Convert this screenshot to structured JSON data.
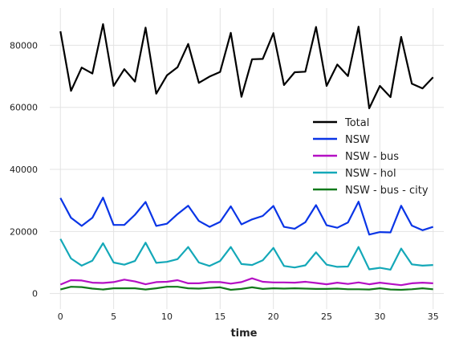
{
  "chart_data": {
    "type": "line",
    "title": "",
    "xlabel": "time",
    "ylabel": "",
    "xlim": [
      -1,
      36
    ],
    "ylim": [
      -5000,
      92000
    ],
    "x_ticks": [
      0,
      5,
      10,
      15,
      20,
      25,
      30,
      35
    ],
    "y_ticks": [
      0,
      20000,
      40000,
      60000,
      80000
    ],
    "grid": true,
    "legend_position": "center-right",
    "x": [
      0,
      1,
      2,
      3,
      4,
      5,
      6,
      7,
      8,
      9,
      10,
      11,
      12,
      13,
      14,
      15,
      16,
      17,
      18,
      19,
      20,
      21,
      22,
      23,
      24,
      25,
      26,
      27,
      28,
      29,
      30,
      31,
      32,
      33,
      34,
      35
    ],
    "series": [
      {
        "name": "Total",
        "color": "#000000",
        "values": [
          84500,
          65300,
          72800,
          70900,
          86800,
          66900,
          72300,
          68300,
          85700,
          64400,
          70300,
          72900,
          80400,
          67900,
          69900,
          71400,
          84000,
          63400,
          75500,
          75600,
          83900,
          67200,
          71300,
          71500,
          85900,
          66900,
          73800,
          70100,
          86000,
          59700,
          66900,
          63300,
          82700,
          67600,
          66100,
          69700
        ]
      },
      {
        "name": "NSW",
        "color": "#0a35e6",
        "values": [
          30800,
          24400,
          21800,
          24400,
          30900,
          22100,
          22100,
          25400,
          29500,
          21800,
          22500,
          25600,
          28300,
          23400,
          21500,
          23100,
          28100,
          22300,
          23900,
          25000,
          28200,
          21500,
          20900,
          23000,
          28500,
          22000,
          21200,
          22900,
          29600,
          19000,
          19800,
          19700,
          28300,
          21900,
          20400,
          21500
        ]
      },
      {
        "name": "NSW - bus",
        "color": "#b410c4",
        "values": [
          2900,
          4300,
          4200,
          3500,
          3400,
          3700,
          4500,
          3900,
          3000,
          3700,
          3800,
          4300,
          3300,
          3300,
          3700,
          3700,
          3200,
          3700,
          4900,
          3800,
          3600,
          3600,
          3500,
          3800,
          3400,
          3000,
          3500,
          3100,
          3600,
          3000,
          3500,
          3100,
          2700,
          3300,
          3500,
          3300
        ]
      },
      {
        "name": "NSW - hol",
        "color": "#14a8b8",
        "values": [
          17600,
          11300,
          9000,
          10600,
          16200,
          10000,
          9300,
          10500,
          16400,
          9900,
          10200,
          11100,
          15000,
          10000,
          8900,
          10500,
          15000,
          9500,
          9200,
          10700,
          14700,
          8900,
          8400,
          9100,
          13300,
          9300,
          8600,
          8700,
          15000,
          7800,
          8300,
          7700,
          14500,
          9400,
          9000,
          9200
        ]
      },
      {
        "name": "NSW - bus - city",
        "color": "#117a1a",
        "values": [
          1300,
          2200,
          2100,
          1600,
          1300,
          1700,
          1700,
          1700,
          1300,
          1700,
          2200,
          2200,
          1700,
          1600,
          1800,
          2000,
          1200,
          1500,
          2000,
          1500,
          1700,
          1600,
          1700,
          1600,
          1500,
          1500,
          1600,
          1400,
          1400,
          1300,
          1700,
          1300,
          1200,
          1400,
          1700,
          1400
        ]
      }
    ]
  }
}
